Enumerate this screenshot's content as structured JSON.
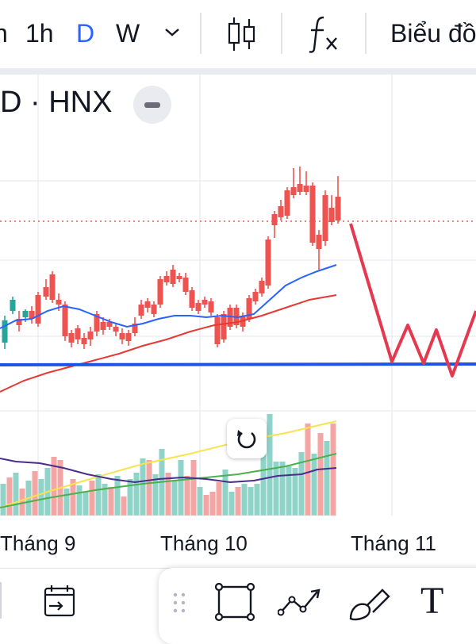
{
  "toolbar": {
    "timeframes": [
      {
        "label": "h",
        "active": false
      },
      {
        "label": "1h",
        "active": false
      },
      {
        "label": "D",
        "active": true
      },
      {
        "label": "W",
        "active": false
      }
    ],
    "dropdown_icon": "chevron-down-icon",
    "candle_icon": "candlestick-icon",
    "indicator_icon": "fx-icon",
    "chart_menu_label": "Biểu đồ"
  },
  "legend": {
    "symbol_text": "D · HNX"
  },
  "colors": {
    "up": "#26a69a",
    "down": "#ef5350",
    "ma_fast": "#2962ff",
    "ma_slow": "#e53935",
    "support_line": "#1e53e5",
    "drawn_path": "#e53950",
    "vol_ma1": "#f7e34e",
    "vol_ma2": "#4caf50",
    "vol_ma3": "#4a2c8c"
  },
  "chart_data": {
    "type": "candlestick",
    "x_labels": [
      "Tháng 9",
      "Tháng 10",
      "Tháng 11"
    ],
    "last_price_line": "dotted-red",
    "annotations": [
      "horizontal support line",
      "drawn zigzag path"
    ]
  },
  "bottom": {
    "calendar_icon": "goto-date-icon",
    "drag_handle_icon": "drag-handle-icon",
    "tools": [
      "rectangle-tool-icon",
      "polyline-tool-icon",
      "brush-tool-icon",
      "text-tool-icon"
    ],
    "text_tool_label": "T"
  }
}
